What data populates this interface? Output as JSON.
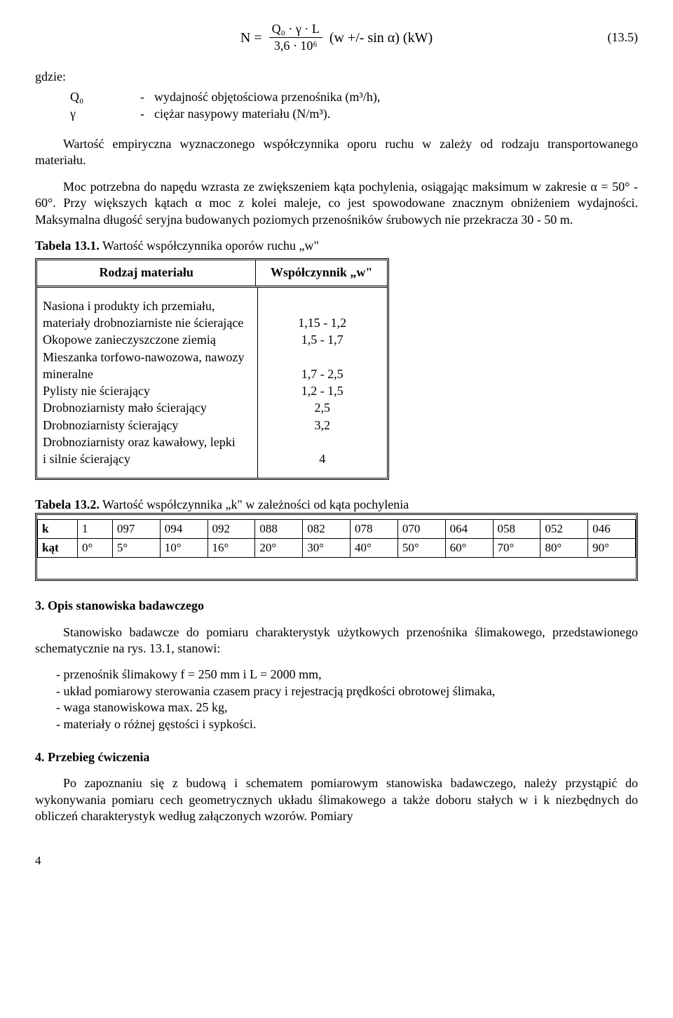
{
  "formula": {
    "lhs": "N =",
    "num": "Q₀ · γ · L",
    "den": "3,6 · 10⁶",
    "rhs": "(w +/- sin α)   (kW)",
    "eqnum": "(13.5)"
  },
  "defs": {
    "label": "gdzie:",
    "rows": [
      {
        "sym": "Q₀",
        "text": "wydajność objętościowa przenośnika (m³/h),"
      },
      {
        "sym": "γ",
        "text": "ciężar nasypowy materiału (N/m³)."
      }
    ]
  },
  "para1": "Wartość empiryczna wyznaczonego współczynnika oporu ruchu w zależy od rodzaju transportowanego materiału.",
  "para2": "Moc potrzebna do napędu wzrasta ze zwiększeniem kąta pochylenia, osiągając maksimum w zakresie α = 50° - 60°. Przy większych kątach α moc z kolei maleje, co jest spowodowane znacznym obniżeniem wydajności. Maksymalna długość seryjna budowanych poziomych przenośników śrubowych nie przekracza 30 - 50 m.",
  "table1": {
    "caption_bold": "Tabela 13.1.",
    "caption_rest": " Wartość współczynnika oporów ruchu „w\"",
    "head_left": "Rodzaj materiału",
    "head_right": "Współczynnik „w\"",
    "left_lines": [
      "Nasiona i produkty ich przemiału,",
      "materiały drobnoziarniste nie ścierające",
      "Okopowe zanieczyszczone ziemią",
      "Mieszanka torfowo-nawozowa, nawozy",
      "mineralne",
      "Pylisty nie ścierający",
      "Drobnoziarnisty mało ścierający",
      "Drobnoziarnisty ścierający",
      "Drobnoziarnisty oraz kawałowy, lepki",
      "i silnie ścierający"
    ],
    "right_lines": [
      " ",
      "1,15 - 1,2",
      "1,5 - 1,7",
      " ",
      "1,7 - 2,5",
      "1,2 - 1,5",
      "2,5",
      "3,2",
      " ",
      "4"
    ]
  },
  "table2": {
    "caption_bold": "Tabela 13.2.",
    "caption_rest": " Wartość współczynnika „k\" w zależności od kąta pochylenia",
    "row1_label": "k",
    "row1": [
      "1",
      "097",
      "094",
      "092",
      "088",
      "082",
      "078",
      "070",
      "064",
      "058",
      "052",
      "046"
    ],
    "row2_label": "kąt",
    "row2": [
      "0°",
      "5°",
      "10°",
      "16°",
      "20°",
      "30°",
      "40°",
      "50°",
      "60°",
      "70°",
      "80°",
      "90°"
    ]
  },
  "section3": {
    "head": "3.  Opis stanowiska badawczego",
    "p1": "Stanowisko badawcze do pomiaru charakterystyk użytkowych przenośnika ślimakowego, przedstawionego schematycznie na rys. 13.1, stanowi:",
    "items": [
      "- przenośnik ślimakowy f = 250 mm i L = 2000 mm,",
      "- układ pomiarowy sterowania czasem pracy i rejestracją prędkości obrotowej ślimaka,",
      "- waga stanowiskowa max. 25 kg,",
      " - materiały o różnej gęstości i sypkości."
    ]
  },
  "section4": {
    "head": "4.  Przebieg ćwiczenia",
    "p1": "Po zapoznaniu się z budową i schematem pomiarowym stanowiska badawczego, należy przystąpić do wykonywania pomiaru cech geometrycznych układu ślimakowego a także doboru stałych w i k niezbędnych do obliczeń charakterystyk według załączonych wzorów. Pomiary"
  },
  "page_number": "4"
}
